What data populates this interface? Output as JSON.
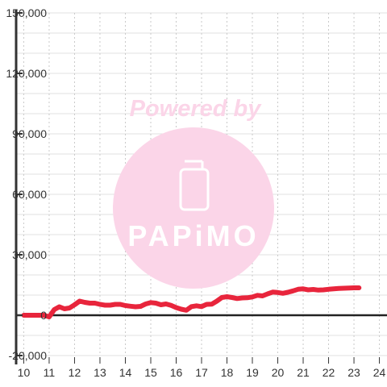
{
  "chart_data": {
    "type": "line",
    "x": [
      10,
      10.2,
      10.4,
      10.6,
      10.8,
      11.0,
      11.2,
      11.4,
      11.6,
      11.8,
      12.0,
      12.2,
      12.4,
      12.6,
      12.8,
      13.0,
      13.2,
      13.4,
      13.6,
      13.8,
      14.0,
      14.2,
      14.4,
      14.6,
      14.8,
      15.0,
      15.2,
      15.4,
      15.6,
      15.8,
      16.0,
      16.2,
      16.4,
      16.6,
      16.8,
      17.0,
      17.2,
      17.4,
      17.6,
      17.8,
      18.0,
      18.2,
      18.4,
      18.6,
      18.8,
      19.0,
      19.2,
      19.4,
      19.6,
      19.8,
      20.0,
      20.2,
      20.4,
      20.6,
      20.8,
      21.0,
      21.2,
      21.4,
      21.6,
      21.8,
      22.0,
      22.2,
      22.4,
      22.6,
      22.8,
      23.0,
      23.2
    ],
    "series": [
      {
        "color": "#e8253c",
        "values": [
          0,
          0,
          0,
          0,
          0,
          -800,
          2800,
          4200,
          3200,
          3600,
          5200,
          7000,
          6400,
          6000,
          6000,
          5400,
          5000,
          5000,
          5400,
          5400,
          4800,
          4500,
          4200,
          4400,
          5600,
          6300,
          6000,
          5200,
          5600,
          4900,
          3800,
          3000,
          2500,
          4300,
          4700,
          4300,
          5400,
          5500,
          7000,
          8800,
          9200,
          8800,
          8300,
          8600,
          8700,
          9100,
          9900,
          9600,
          10600,
          11500,
          11300,
          10900,
          11400,
          12100,
          12900,
          13100,
          12600,
          12800,
          12500,
          12600,
          12900,
          13100,
          13300,
          13400,
          13500,
          13600,
          13600
        ]
      }
    ],
    "xlim": [
      9.7,
      24.3
    ],
    "ylim": [
      -20000,
      150000
    ],
    "x_ticks": [
      10,
      11,
      12,
      13,
      14,
      15,
      16,
      17,
      18,
      19,
      20,
      21,
      22,
      23,
      24
    ],
    "y_ticks": [
      -20000,
      0,
      30000,
      60000,
      90000,
      120000,
      150000
    ],
    "y_tick_labels": [
      "-20,000",
      "0",
      "30,000",
      "60,000",
      "90,000",
      "120,000",
      "150,000"
    ],
    "title": "",
    "xlabel": "",
    "ylabel": "",
    "grid": true,
    "legend": "none",
    "watermark": {
      "text_top": "Powered by",
      "text_logo": "PAPiMO",
      "color": "#fbd5e8"
    }
  }
}
